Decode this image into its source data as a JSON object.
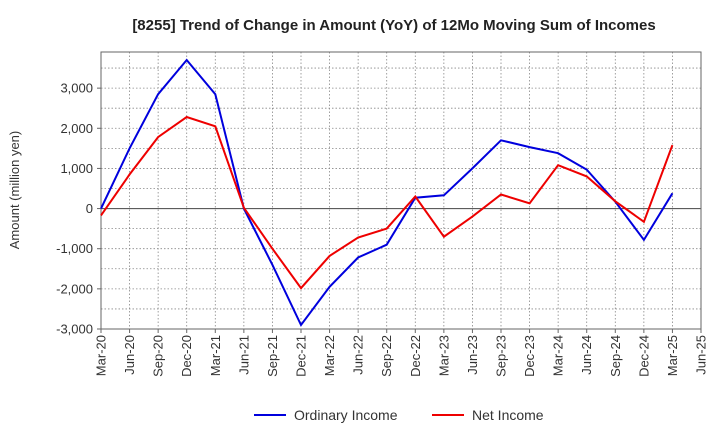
{
  "chart_data": {
    "type": "line",
    "title": "[8255]  Trend of Change in Amount (YoY) of 12Mo Moving Sum of Incomes",
    "xlabel": "",
    "ylabel": "Amount (million yen)",
    "ylim": [
      -3000,
      3900
    ],
    "yticks": [
      3000,
      2000,
      1000,
      0,
      -1000,
      -2000,
      -3000
    ],
    "ytick_labels": [
      "3,000",
      "2,000",
      "1,000",
      "0",
      "-1,000",
      "-2,000",
      "-3,000"
    ],
    "categories": [
      "Mar-20",
      "Jun-20",
      "Sep-20",
      "Dec-20",
      "Mar-21",
      "Jun-21",
      "Sep-21",
      "Dec-21",
      "Mar-22",
      "Jun-22",
      "Sep-22",
      "Dec-22",
      "Mar-23",
      "Jun-23",
      "Sep-23",
      "Dec-23",
      "Mar-24",
      "Jun-24",
      "Sep-24",
      "Dec-24",
      "Mar-25",
      "Jun-25"
    ],
    "grid": true,
    "legend_position": "bottom",
    "series": [
      {
        "name": "Ordinary Income",
        "color": "#0000dd",
        "values": [
          0,
          1500,
          2850,
          3700,
          2850,
          0,
          -1400,
          -2900,
          -1950,
          -1220,
          -900,
          270,
          330,
          1000,
          1700,
          1530,
          1380,
          970,
          170,
          -780,
          380,
          null
        ]
      },
      {
        "name": "Net Income",
        "color": "#ee0000",
        "values": [
          -170,
          850,
          1780,
          2280,
          2050,
          20,
          -1000,
          -1980,
          -1180,
          -720,
          -500,
          300,
          -700,
          -200,
          350,
          130,
          1080,
          800,
          180,
          -330,
          1580,
          null
        ]
      }
    ]
  }
}
